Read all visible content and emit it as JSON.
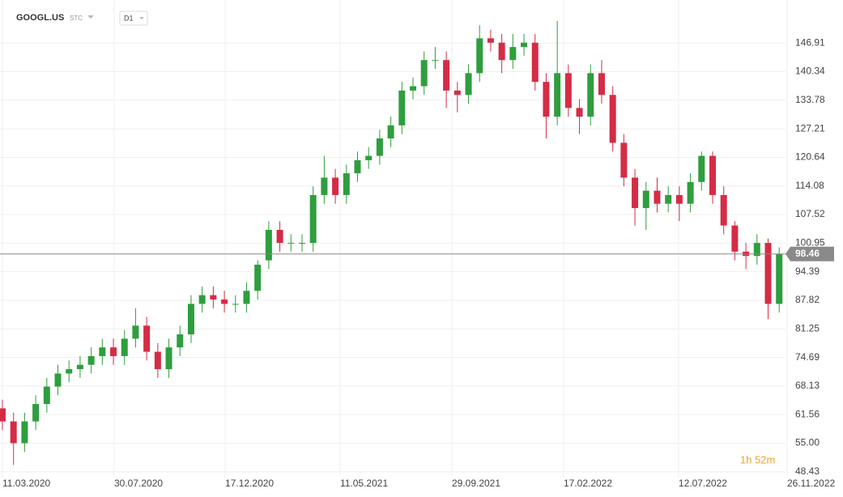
{
  "header": {
    "symbol": "GOOGL.US",
    "market": "STC",
    "interval": "D1"
  },
  "chart_data": {
    "type": "candlestick",
    "x": [
      "11.03.2020",
      "25.03.2020",
      "08.04.2020",
      "22.04.2020",
      "06.05.2020",
      "20.05.2020",
      "03.06.2020",
      "17.06.2020",
      "01.07.2020",
      "15.07.2020",
      "29.07.2020",
      "12.08.2020",
      "26.08.2020",
      "09.09.2020",
      "23.09.2020",
      "07.10.2020",
      "21.10.2020",
      "04.11.2020",
      "18.11.2020",
      "02.12.2020",
      "16.12.2020",
      "30.12.2020",
      "13.01.2021",
      "27.01.2021",
      "10.02.2021",
      "24.02.2021",
      "10.03.2021",
      "24.03.2021",
      "07.04.2021",
      "21.04.2021",
      "05.05.2021",
      "19.05.2021",
      "02.06.2021",
      "16.06.2021",
      "30.06.2021",
      "14.07.2021",
      "28.07.2021",
      "11.08.2021",
      "25.08.2021",
      "08.09.2021",
      "22.09.2021",
      "06.10.2021",
      "20.10.2021",
      "03.11.2021",
      "17.11.2021",
      "01.12.2021",
      "15.12.2021",
      "29.12.2021",
      "12.01.2022",
      "26.01.2022",
      "09.02.2022",
      "23.02.2022",
      "09.03.2022",
      "23.03.2022",
      "06.04.2022",
      "20.04.2022",
      "04.05.2022",
      "18.05.2022",
      "01.06.2022",
      "15.06.2022",
      "29.06.2022",
      "13.07.2022",
      "27.07.2022",
      "10.08.2022",
      "24.08.2022",
      "07.09.2022",
      "21.09.2022",
      "05.10.2022",
      "19.10.2022",
      "02.11.2022",
      "16.11.2022"
    ],
    "open": [
      63,
      60,
      55,
      60,
      64,
      68,
      71,
      72,
      73,
      75,
      77,
      75,
      79,
      82,
      76,
      72,
      77,
      80,
      87,
      89,
      88,
      87,
      87,
      90,
      97,
      104,
      101,
      101,
      101,
      112,
      116,
      112,
      117,
      120,
      121,
      125,
      128,
      136,
      137,
      143,
      143,
      136,
      135,
      140,
      148,
      147,
      143,
      146,
      147,
      138,
      130,
      140,
      132,
      130,
      140,
      135,
      124,
      116,
      109,
      113,
      110,
      112,
      110,
      115,
      121,
      112,
      105,
      99,
      98,
      101,
      87
    ],
    "high": [
      65,
      62,
      62,
      66,
      70,
      73,
      74,
      75,
      77,
      79,
      79,
      81,
      86,
      84,
      78,
      79,
      82,
      89,
      91,
      91,
      90,
      89,
      92,
      97,
      106,
      106,
      103,
      103,
      114,
      121,
      118,
      119,
      122,
      123,
      127,
      130,
      138,
      139,
      145,
      146,
      145,
      138,
      142,
      151,
      150,
      149,
      149,
      149,
      149,
      140,
      152,
      142,
      134,
      142,
      143,
      137,
      126,
      118,
      115,
      116,
      114,
      114,
      117,
      122,
      122,
      114,
      106,
      101,
      103,
      102,
      100
    ],
    "low": [
      58,
      50,
      53,
      58,
      62,
      66,
      69,
      70,
      71,
      73,
      73,
      73,
      77,
      74,
      70,
      70,
      75,
      78,
      85,
      86,
      85,
      85,
      85,
      88,
      95,
      99,
      99,
      99,
      99,
      110,
      110,
      110,
      115,
      118,
      119,
      123,
      126,
      134,
      135,
      141,
      132,
      131,
      133,
      138,
      145,
      140,
      141,
      144,
      136,
      125,
      128,
      130,
      126,
      128,
      133,
      122,
      114,
      105,
      104,
      108,
      108,
      106,
      108,
      113,
      110,
      103,
      97,
      95,
      96,
      83.5,
      85
    ],
    "close": [
      60,
      55,
      60,
      64,
      68,
      71,
      72,
      73,
      75,
      77,
      75,
      79,
      82,
      76,
      72,
      77,
      80,
      87,
      89,
      88,
      87,
      87,
      90,
      96,
      104,
      101,
      101,
      101,
      112,
      116,
      112,
      117,
      120,
      121,
      125,
      128,
      136,
      137,
      143,
      143,
      136,
      135,
      140,
      148,
      147,
      143,
      146,
      147,
      138,
      130,
      140,
      132,
      130,
      140,
      135,
      124,
      116,
      109,
      113,
      110,
      112,
      110,
      115,
      121,
      112,
      105,
      99,
      98,
      101,
      87,
      98.46
    ],
    "up_color": "#2e9e3e",
    "down_color": "#d42c46",
    "xlim": [
      "11.03.2020",
      "26.11.2022"
    ],
    "xticks": [
      "11.03.2020",
      "30.07.2020",
      "17.12.2020",
      "11.05.2021",
      "29.09.2021",
      "17.02.2022",
      "12.07.2022",
      "26.11.2022"
    ],
    "ylim": [
      47.1,
      156.8
    ],
    "yticks": [
      48.43,
      {
        "value": 55,
        "label": "55.00"
      },
      61.56,
      68.13,
      74.69,
      81.25,
      87.82,
      94.39,
      100.95,
      107.52,
      114.08,
      120.64,
      127.21,
      133.78,
      140.34,
      146.91
    ],
    "grid": true,
    "countdown": "1h 52m"
  }
}
